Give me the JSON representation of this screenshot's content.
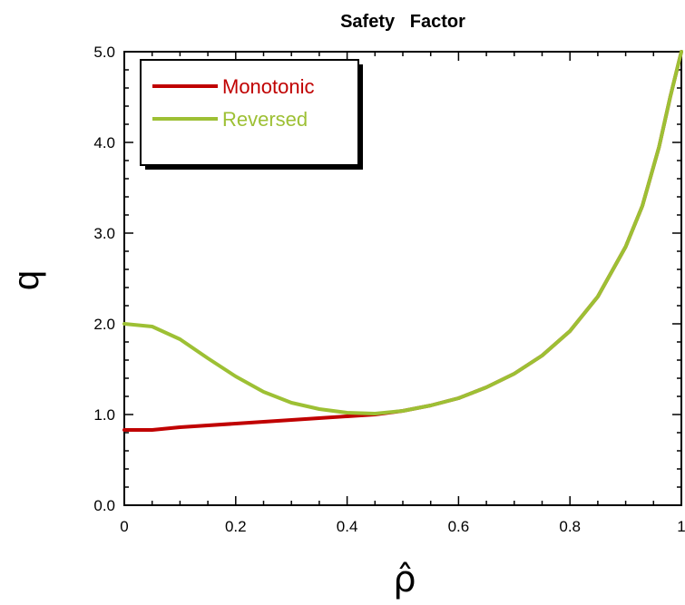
{
  "chart_data": {
    "type": "line",
    "title": "Safety   Factor",
    "xlabel": "ρ̂",
    "ylabel": "q",
    "xlim": [
      0,
      1
    ],
    "ylim": [
      0,
      5
    ],
    "x_ticks": [
      0,
      0.2,
      0.4,
      0.6,
      0.8,
      1
    ],
    "x_tick_labels": [
      "0",
      "0.2",
      "0.4",
      "0.6",
      "0.8",
      "1"
    ],
    "y_ticks": [
      0,
      1,
      2,
      3,
      4,
      5
    ],
    "y_tick_labels": [
      "0.0",
      "1.0",
      "2.0",
      "3.0",
      "4.0",
      "5.0"
    ],
    "grid": false,
    "legend_position": "top-left",
    "series": [
      {
        "name": "Monotonic",
        "color": "#c00000",
        "x": [
          0,
          0.05,
          0.1,
          0.2,
          0.3,
          0.4,
          0.45,
          0.5,
          0.55,
          0.6,
          0.65,
          0.7,
          0.75,
          0.8,
          0.85,
          0.9,
          0.93,
          0.96,
          0.98,
          1.0
        ],
        "y": [
          0.83,
          0.83,
          0.86,
          0.9,
          0.94,
          0.98,
          1.0,
          1.04,
          1.1,
          1.18,
          1.3,
          1.45,
          1.65,
          1.92,
          2.3,
          2.85,
          3.3,
          3.95,
          4.5,
          5.0
        ]
      },
      {
        "name": "Reversed",
        "color": "#9dc034",
        "x": [
          0,
          0.05,
          0.1,
          0.15,
          0.2,
          0.25,
          0.3,
          0.35,
          0.4,
          0.45,
          0.5,
          0.55,
          0.6,
          0.65,
          0.7,
          0.75,
          0.8,
          0.85,
          0.9,
          0.93,
          0.96,
          0.98,
          1.0
        ],
        "y": [
          2.0,
          1.97,
          1.83,
          1.62,
          1.42,
          1.25,
          1.13,
          1.06,
          1.02,
          1.01,
          1.04,
          1.1,
          1.18,
          1.3,
          1.45,
          1.65,
          1.92,
          2.3,
          2.85,
          3.3,
          3.95,
          4.5,
          5.0
        ]
      }
    ]
  }
}
